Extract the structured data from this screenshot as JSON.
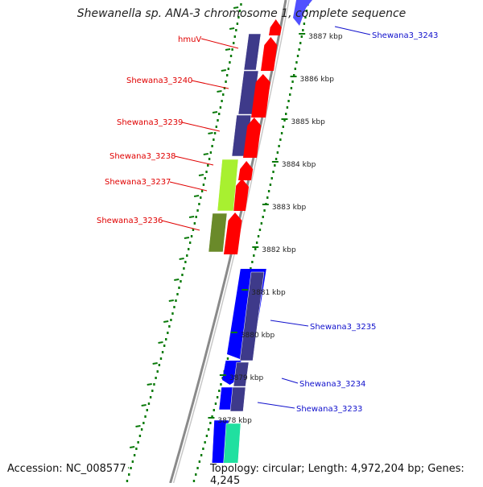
{
  "title": "Shewanella sp. ANA-3 chromosome 1, complete sequence",
  "accession": "Accession: NC_008577",
  "summary": "Topology: circular; Length: 4,972,204 bp; Genes: 4,245",
  "colors": {
    "label_left": "#e00000",
    "label_right": "#1010cc",
    "tick_green": "#0a7a0a",
    "backbone": "#8a8a8a",
    "gene_navy": "#3e3a8a",
    "gene_red": "#ff0000",
    "gene_blue": "#0000ff",
    "gene_lime": "#a8f030",
    "gene_olive": "#6a8a2a",
    "gene_aqua": "#20e0a0"
  },
  "kbp_ticks": [
    "3878 kbp",
    "3879 kbp",
    "3880 kbp",
    "3881 kbp",
    "3882 kbp",
    "3883 kbp",
    "3884 kbp",
    "3885 kbp",
    "3886 kbp",
    "3887 kbp"
  ],
  "gene_labels": [
    {
      "text": "hmuV",
      "side": "left"
    },
    {
      "text": "Shewana3_3240",
      "side": "left"
    },
    {
      "text": "Shewana3_3239",
      "side": "left"
    },
    {
      "text": "Shewana3_3238",
      "side": "left"
    },
    {
      "text": "Shewana3_3237",
      "side": "left"
    },
    {
      "text": "Shewana3_3236",
      "side": "left"
    },
    {
      "text": "Shewana3_3243",
      "side": "right"
    },
    {
      "text": "Shewana3_3235",
      "side": "right"
    },
    {
      "text": "Shewana3_3234",
      "side": "right"
    },
    {
      "text": "Shewana3_3233",
      "side": "right"
    }
  ]
}
